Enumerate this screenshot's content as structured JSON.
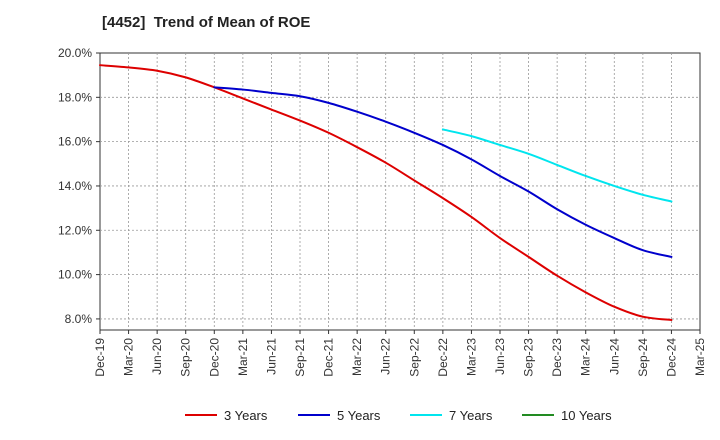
{
  "chart_data": {
    "type": "line",
    "title": "[4452]  Trend of Mean of ROE",
    "xlabel": "",
    "ylabel": "",
    "ylim": [
      7.5,
      20.0
    ],
    "y_ticks": [
      8.0,
      10.0,
      12.0,
      14.0,
      16.0,
      18.0,
      20.0
    ],
    "y_tick_labels": [
      "8.0%",
      "10.0%",
      "12.0%",
      "14.0%",
      "16.0%",
      "18.0%",
      "20.0%"
    ],
    "x_ticks": [
      "Dec-19",
      "Mar-20",
      "Jun-20",
      "Sep-20",
      "Dec-20",
      "Mar-21",
      "Jun-21",
      "Sep-21",
      "Dec-21",
      "Mar-22",
      "Jun-22",
      "Sep-22",
      "Dec-22",
      "Mar-23",
      "Jun-23",
      "Sep-23",
      "Dec-23",
      "Mar-24",
      "Jun-24",
      "Sep-24",
      "Dec-24",
      "Mar-25"
    ],
    "grid": true,
    "legend_position": "bottom",
    "series": [
      {
        "name": "3 Years",
        "color": "#dd0000",
        "x": [
          "Dec-19",
          "Mar-20",
          "Jun-20",
          "Sep-20",
          "Dec-20",
          "Mar-21",
          "Jun-21",
          "Sep-21",
          "Dec-21",
          "Mar-22",
          "Jun-22",
          "Sep-22",
          "Dec-22",
          "Mar-23",
          "Jun-23",
          "Sep-23",
          "Dec-23",
          "Mar-24",
          "Jun-24",
          "Sep-24",
          "Dec-24"
        ],
        "values": [
          19.45,
          19.35,
          19.2,
          18.9,
          18.45,
          17.95,
          17.45,
          16.95,
          16.4,
          15.75,
          15.05,
          14.25,
          13.45,
          12.6,
          11.65,
          10.8,
          9.95,
          9.2,
          8.55,
          8.1,
          7.95
        ]
      },
      {
        "name": "5 Years",
        "color": "#0000cc",
        "x": [
          "Dec-20",
          "Mar-21",
          "Jun-21",
          "Sep-21",
          "Dec-21",
          "Mar-22",
          "Jun-22",
          "Sep-22",
          "Dec-22",
          "Mar-23",
          "Jun-23",
          "Sep-23",
          "Dec-23",
          "Mar-24",
          "Jun-24",
          "Sep-24",
          "Dec-24"
        ],
        "values": [
          18.45,
          18.35,
          18.2,
          18.05,
          17.75,
          17.35,
          16.9,
          16.4,
          15.85,
          15.2,
          14.45,
          13.75,
          12.95,
          12.25,
          11.65,
          11.1,
          10.8
        ]
      },
      {
        "name": "7 Years",
        "color": "#00e5ee",
        "x": [
          "Dec-22",
          "Mar-23",
          "Jun-23",
          "Sep-23",
          "Dec-23",
          "Mar-24",
          "Jun-24",
          "Sep-24",
          "Dec-24"
        ],
        "values": [
          16.55,
          16.25,
          15.85,
          15.45,
          14.95,
          14.45,
          14.0,
          13.6,
          13.3
        ]
      },
      {
        "name": "10 Years",
        "color": "#228b22",
        "x": [],
        "values": []
      }
    ]
  }
}
